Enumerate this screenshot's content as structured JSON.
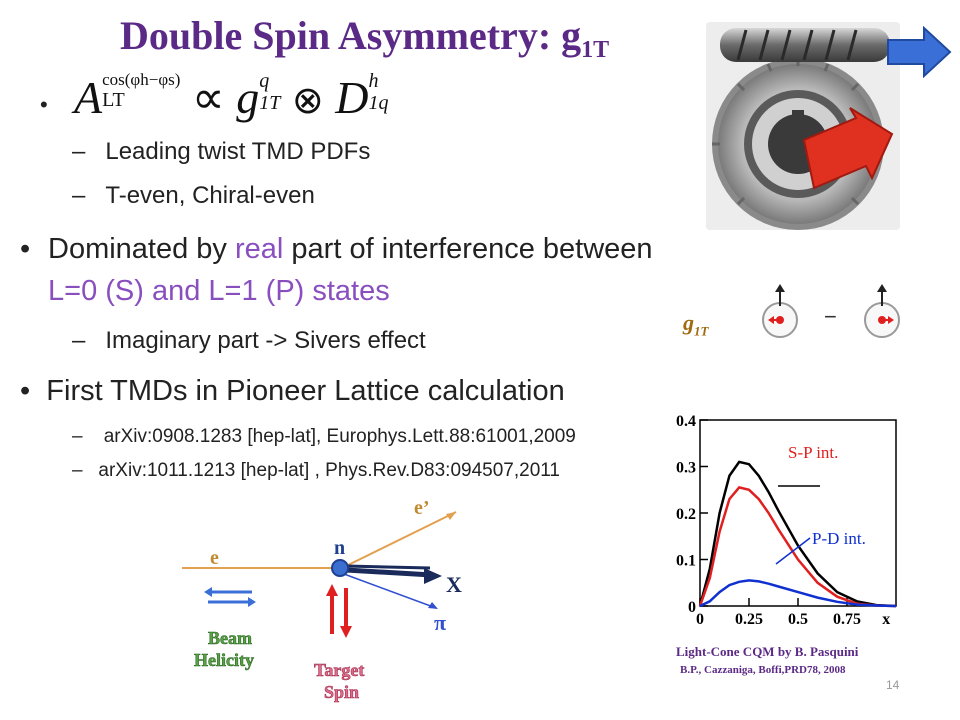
{
  "slide": {
    "title": "Double Spin Asymmetry: g",
    "title_sub": "1T",
    "page_number": "14"
  },
  "formula": {
    "lhs_base": "A",
    "lhs_sup": "cos(φh−φs)",
    "lhs_sub": "LT",
    "prop": "∝",
    "g_base": "g",
    "g_sup": "q",
    "g_sub": "1T",
    "op": "⊗",
    "d_base": "D",
    "d_sup": "h",
    "d_sub": "1q"
  },
  "bullets": [
    {
      "subs": [
        "Leading twist TMD PDFs",
        "T-even, Chiral-even"
      ]
    },
    {
      "parts": [
        "Dominated by ",
        "real",
        " part of interference between ",
        "L=0 (S) and L=1 (P) states"
      ],
      "subs": [
        "Imaginary part -> Sivers effect"
      ]
    },
    {
      "text": "First TMDs in Pioneer Lattice calculation",
      "refs": [
        "arXiv:0908.1283 [hep-lat], Europhys.Lett.88:61001,2009",
        "arXiv:1011.1213 [hep-lat] , Phys.Rev.D83:094507,2011"
      ]
    }
  ],
  "spin_diagram": {
    "label": "g",
    "label_sub": "1T",
    "minus": "−"
  },
  "chart_data": {
    "type": "line",
    "x_tick_labels": [
      "0",
      "0.25",
      "0.5",
      "0.75",
      "x"
    ],
    "y_tick_labels": [
      "0",
      "0.1",
      "0.2",
      "0.3",
      "0.4"
    ],
    "xlim": [
      0,
      1
    ],
    "ylim": [
      0,
      0.4
    ],
    "x": [
      0,
      0.05,
      0.1,
      0.15,
      0.2,
      0.25,
      0.3,
      0.35,
      0.4,
      0.5,
      0.6,
      0.7,
      0.8,
      0.9,
      1.0
    ],
    "series": [
      {
        "name": "",
        "color": "#000000",
        "values": [
          0,
          0.08,
          0.2,
          0.28,
          0.31,
          0.305,
          0.28,
          0.245,
          0.205,
          0.13,
          0.07,
          0.03,
          0.01,
          0.002,
          0
        ]
      },
      {
        "name": "S-P int.",
        "color": "#e02020",
        "values": [
          0,
          0.06,
          0.16,
          0.23,
          0.255,
          0.25,
          0.23,
          0.2,
          0.165,
          0.1,
          0.05,
          0.02,
          0.005,
          0.001,
          0
        ]
      },
      {
        "name": "P-D int.",
        "color": "#1030d0",
        "values": [
          0,
          0.01,
          0.03,
          0.045,
          0.052,
          0.055,
          0.053,
          0.048,
          0.042,
          0.03,
          0.018,
          0.009,
          0.003,
          0.001,
          0
        ]
      }
    ],
    "annotations": [
      "S-P int.",
      "P-D int."
    ],
    "caption_line1": "Light-Cone CQM by B. Pasquini",
    "caption_line2": "B.P., Cazzaniga, Boffi,PRD78, 2008"
  },
  "scattering": {
    "e_label": "e",
    "eprime_label": "e’",
    "n_label": "n",
    "x_label": "X",
    "pi_label": "π",
    "beam_label1": "Beam",
    "beam_label2": "Helicity",
    "target_label1": "Target",
    "target_label2": "Spin"
  },
  "colors": {
    "title": "#5b2a86",
    "accent": "#8a4fbf",
    "arrow_blue": "#3b6fd8",
    "arrow_red": "#e02020"
  }
}
